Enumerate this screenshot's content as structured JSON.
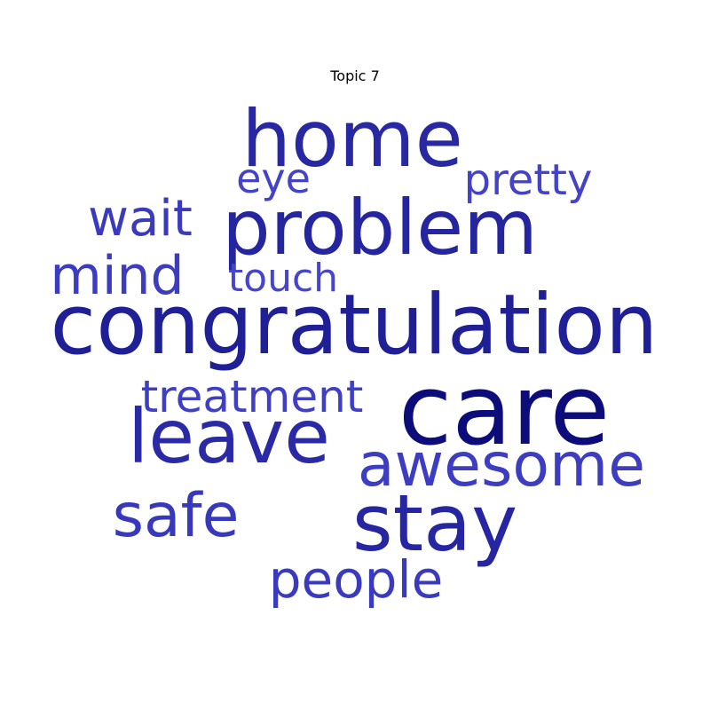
{
  "title": "Topic 7",
  "word_cloud": {
    "words": [
      {
        "key": "care",
        "text": "care",
        "color": "#0c0c7a"
      },
      {
        "key": "congratulation",
        "text": "congratulation",
        "color": "#1f1f96"
      },
      {
        "key": "home",
        "text": "home",
        "color": "#2828a3"
      },
      {
        "key": "problem",
        "text": "problem",
        "color": "#2525a0"
      },
      {
        "key": "leave",
        "text": "leave",
        "color": "#2a2aa6"
      },
      {
        "key": "stay",
        "text": "stay",
        "color": "#2626a3"
      },
      {
        "key": "awesome",
        "text": "awesome",
        "color": "#3d3dc2"
      },
      {
        "key": "safe",
        "text": "safe",
        "color": "#3838bd"
      },
      {
        "key": "people",
        "text": "people",
        "color": "#3a3ac0"
      },
      {
        "key": "mind",
        "text": "mind",
        "color": "#3c3cc0"
      },
      {
        "key": "wait",
        "text": "wait",
        "color": "#3a3abe"
      },
      {
        "key": "treatment",
        "text": "treatment",
        "color": "#3f3fc6"
      },
      {
        "key": "pretty",
        "text": "pretty",
        "color": "#4343ca"
      },
      {
        "key": "eye",
        "text": "eye",
        "color": "#4343ca"
      },
      {
        "key": "touch",
        "text": "touch",
        "color": "#4646cc"
      }
    ]
  }
}
